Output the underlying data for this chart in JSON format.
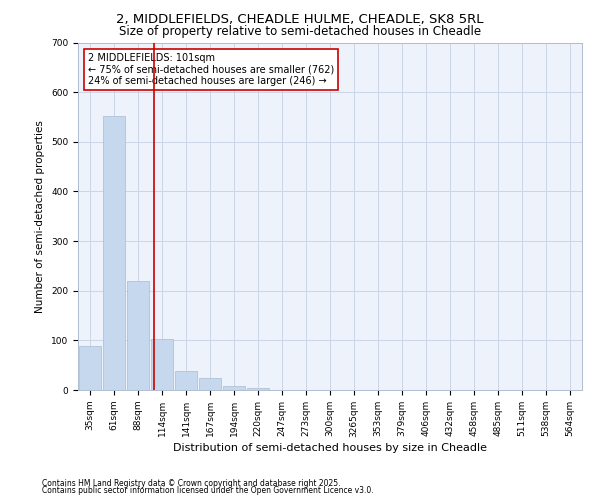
{
  "title1": "2, MIDDLEFIELDS, CHEADLE HULME, CHEADLE, SK8 5RL",
  "title2": "Size of property relative to semi-detached houses in Cheadle",
  "xlabel": "Distribution of semi-detached houses by size in Cheadle",
  "ylabel": "Number of semi-detached properties",
  "categories": [
    "35sqm",
    "61sqm",
    "88sqm",
    "114sqm",
    "141sqm",
    "167sqm",
    "194sqm",
    "220sqm",
    "247sqm",
    "273sqm",
    "300sqm",
    "3265qm",
    "353sqm",
    "379sqm",
    "406sqm",
    "432sqm",
    "458sqm",
    "485sqm",
    "511sqm",
    "538sqm",
    "564sqm"
  ],
  "values": [
    88,
    552,
    220,
    103,
    38,
    25,
    8,
    5,
    0,
    0,
    0,
    0,
    0,
    0,
    0,
    0,
    0,
    0,
    0,
    0,
    0
  ],
  "bar_color": "#c5d8ed",
  "bar_edge_color": "#a8bdd0",
  "grid_color": "#ccd6e8",
  "vline_x": 2.67,
  "vline_color": "#cc0000",
  "annotation_text": "2 MIDDLEFIELDS: 101sqm\n← 75% of semi-detached houses are smaller (762)\n24% of semi-detached houses are larger (246) →",
  "annotation_box_color": "#ffffff",
  "annotation_box_edge": "#cc0000",
  "footnote1": "Contains HM Land Registry data © Crown copyright and database right 2025.",
  "footnote2": "Contains public sector information licensed under the Open Government Licence v3.0.",
  "ylim": [
    0,
    700
  ],
  "title_fontsize": 9.5,
  "subtitle_fontsize": 8.5,
  "tick_fontsize": 6.5,
  "ylabel_fontsize": 7.5,
  "xlabel_fontsize": 8,
  "annot_fontsize": 7,
  "footnote_fontsize": 5.5
}
